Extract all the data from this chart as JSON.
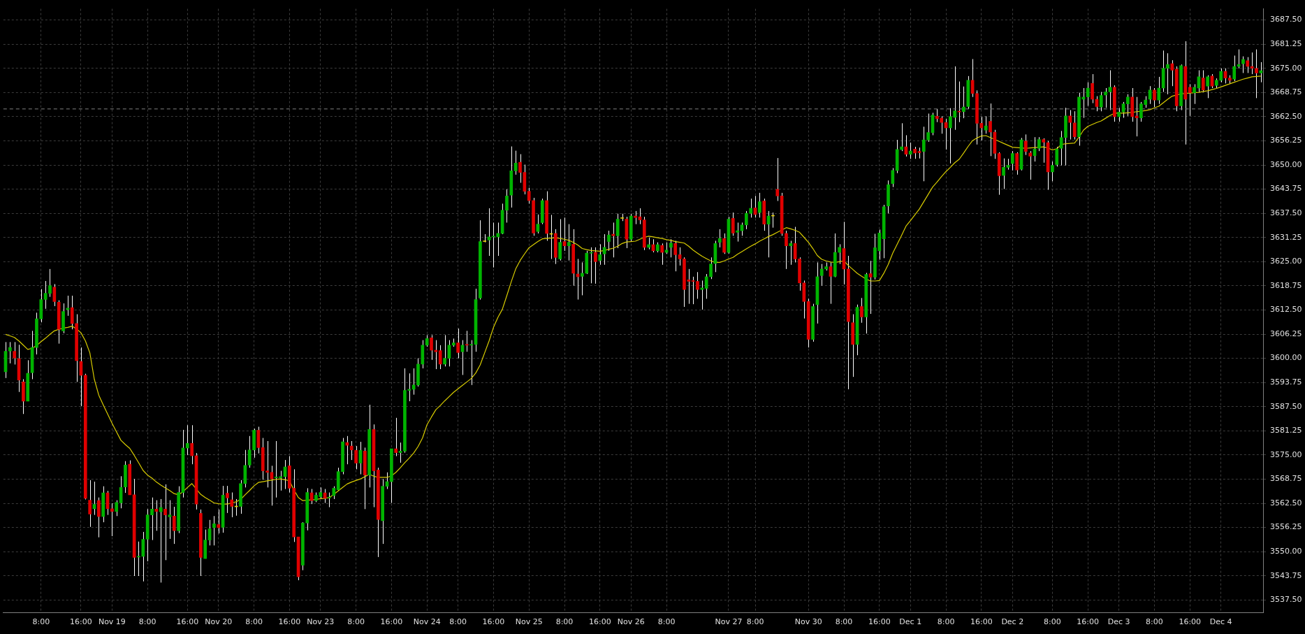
{
  "chart_data": {
    "type": "candlestick",
    "legend": false,
    "grid": true,
    "marker": "none",
    "categories": [
      null,
      null,
      null,
      null,
      null,
      null,
      null,
      null,
      "8:00",
      null,
      null,
      null,
      null,
      null,
      null,
      null,
      null,
      "16:00",
      null,
      null,
      null,
      null,
      null,
      null,
      "Nov 19",
      null,
      null,
      null,
      null,
      null,
      null,
      null,
      "8:00",
      null,
      null,
      null,
      null,
      null,
      null,
      null,
      null,
      "16:00",
      null,
      null,
      null,
      null,
      null,
      null,
      "Nov 20",
      null,
      null,
      null,
      null,
      null,
      null,
      null,
      "8:00",
      null,
      null,
      null,
      null,
      null,
      null,
      null,
      "16:00",
      null,
      null,
      null,
      null,
      null,
      null,
      "Nov 23",
      null,
      null,
      null,
      null,
      null,
      null,
      null,
      "8:00",
      null,
      null,
      null,
      null,
      null,
      null,
      null,
      "16:00",
      null,
      null,
      null,
      null,
      null,
      null,
      null,
      "Nov 24",
      null,
      null,
      null,
      null,
      null,
      null,
      "8:00",
      null,
      null,
      null,
      null,
      null,
      null,
      null,
      "16:00",
      null,
      null,
      null,
      null,
      null,
      null,
      null,
      "Nov 25",
      null,
      null,
      null,
      null,
      null,
      null,
      null,
      "8:00",
      null,
      null,
      null,
      null,
      null,
      null,
      null,
      "16:00",
      null,
      null,
      null,
      null,
      null,
      null,
      "Nov 26",
      null,
      null,
      null,
      null,
      null,
      null,
      null,
      "8:00",
      null,
      null,
      null,
      null,
      null,
      null,
      null,
      null,
      null,
      null,
      null,
      null,
      null,
      "Nov 27",
      null,
      null,
      null,
      null,
      null,
      "8:00",
      null,
      null,
      null,
      null,
      null,
      null,
      null,
      null,
      null,
      null,
      null,
      "Nov 30",
      null,
      null,
      null,
      null,
      null,
      null,
      null,
      "8:00",
      null,
      null,
      null,
      null,
      null,
      null,
      null,
      "16:00",
      null,
      null,
      null,
      null,
      null,
      null,
      "Dec 1",
      null,
      null,
      null,
      null,
      null,
      null,
      null,
      "8:00",
      null,
      null,
      null,
      null,
      null,
      null,
      null,
      "16:00",
      null,
      null,
      null,
      null,
      null,
      null,
      "Dec 2",
      null,
      null,
      null,
      null,
      null,
      null,
      null,
      null,
      "8:00",
      null,
      null,
      null,
      null,
      null,
      null,
      null,
      "16:00",
      null,
      null,
      null,
      null,
      null,
      null,
      "Dec 3",
      null,
      null,
      null,
      null,
      null,
      null,
      null,
      "8:00",
      null,
      null,
      null,
      null,
      null,
      null,
      null,
      "16:00",
      null,
      null,
      null,
      null,
      null,
      null,
      "Dec 4",
      null,
      null,
      null,
      null,
      null,
      null,
      null,
      null,
      null
    ],
    "ohlc": [
      [
        3596.5,
        3604.2,
        3594.9,
        3601.8
      ],
      [
        3601.9,
        3604.2,
        3598.7,
        3602.8
      ],
      [
        3601.8,
        3604.2,
        3598.4,
        3600.1
      ],
      [
        3599.9,
        3603.5,
        3591.3,
        3594.4
      ],
      [
        3593.9,
        3594.6,
        3585.6,
        3588.9
      ],
      [
        3588.9,
        3599.5,
        3588.9,
        3596.1
      ],
      [
        3596.3,
        3607.1,
        3594.6,
        3602.8
      ],
      [
        3602.8,
        3611.8,
        3601.0,
        3610.2
      ],
      [
        3610.2,
        3617.9,
        3609.3,
        3615.2
      ],
      [
        3615.2,
        3620.0,
        3612.8,
        3616.8
      ],
      [
        3616.8,
        3623.1,
        3615.9,
        3618.8
      ],
      [
        3618.4,
        3619.2,
        3613.5,
        3614.7
      ],
      [
        3614.5,
        3615.0,
        3603.8,
        3607.5
      ],
      [
        3607.1,
        3614.2,
        3606.5,
        3612.1
      ],
      [
        3612.6,
        3616.2,
        3611.0,
        3613.0
      ],
      [
        3613.1,
        3616.2,
        3607.5,
        3609.0
      ],
      [
        3609.0,
        3611.4,
        3593.9,
        3599.4
      ],
      [
        3599.2,
        3602.8,
        3587.6,
        3595.6
      ],
      [
        3595.6,
        3596.0,
        3563.5,
        3563.8
      ],
      [
        3563.3,
        3568.5,
        3556.4,
        3559.7
      ],
      [
        3561.1,
        3568.1,
        3559.5,
        3562.2
      ],
      [
        3563.2,
        3564.0,
        3553.7,
        3559.1
      ],
      [
        3559.1,
        3566.9,
        3557.6,
        3565.2
      ],
      [
        3565.2,
        3565.7,
        3559.5,
        3561.1
      ],
      [
        3561.1,
        3562.5,
        3554.0,
        3560.4
      ],
      [
        3560.4,
        3563.3,
        3559.2,
        3562.7
      ],
      [
        3562.6,
        3569.5,
        3561.2,
        3566.6
      ],
      [
        3566.7,
        3573.4,
        3565.2,
        3572.4
      ],
      [
        3572.6,
        3573.6,
        3564.7,
        3564.7
      ],
      [
        3564.7,
        3568.8,
        3543.7,
        3548.5
      ],
      [
        3548.6,
        3552.6,
        3543.7,
        3548.8
      ],
      [
        3548.8,
        3555.1,
        3542.3,
        3553.2
      ],
      [
        3553.2,
        3561.0,
        3547.5,
        3559.5
      ],
      [
        3559.5,
        3564.0,
        3553.0,
        3561.0
      ],
      [
        3561.0,
        3563.3,
        3555.4,
        3560.4
      ],
      [
        3560.3,
        3563.6,
        3542.0,
        3561.4
      ],
      [
        3561.0,
        3567.4,
        3547.8,
        3559.5
      ],
      [
        3559.0,
        3563.3,
        3553.3,
        3559.5
      ],
      [
        3559.2,
        3561.6,
        3552.0,
        3555.4
      ],
      [
        3555.4,
        3566.9,
        3554.8,
        3565.3
      ],
      [
        3565.3,
        3581.5,
        3564.0,
        3576.8
      ],
      [
        3576.8,
        3582.7,
        3575.0,
        3578.0
      ],
      [
        3578.0,
        3582.7,
        3572.6,
        3574.8
      ],
      [
        3574.8,
        3575.5,
        3560.9,
        3562.3
      ],
      [
        3559.9,
        3560.9,
        3543.7,
        3548.5
      ],
      [
        3548.2,
        3555.7,
        3548.2,
        3553.0
      ],
      [
        3553.0,
        3558.2,
        3551.6,
        3555.9
      ],
      [
        3556.2,
        3559.2,
        3551.6,
        3557.2
      ],
      [
        3557.0,
        3560.9,
        3554.7,
        3556.2
      ],
      [
        3556.3,
        3567.0,
        3554.9,
        3564.6
      ],
      [
        3565.1,
        3567.0,
        3560.0,
        3563.9
      ],
      [
        3563.4,
        3565.3,
        3558.9,
        3561.7
      ],
      [
        3561.6,
        3563.6,
        3559.3,
        3561.6
      ],
      [
        3561.7,
        3568.5,
        3559.8,
        3567.6
      ],
      [
        3567.6,
        3576.3,
        3566.6,
        3572.3
      ],
      [
        3572.4,
        3579.9,
        3571.7,
        3576.3
      ],
      [
        3576.3,
        3581.8,
        3574.3,
        3581.4
      ],
      [
        3581.4,
        3582.3,
        3575.4,
        3576.9
      ],
      [
        3576.9,
        3579.4,
        3568.6,
        3570.9
      ],
      [
        3570.9,
        3578.6,
        3566.6,
        3570.5
      ],
      [
        3570.5,
        3572.2,
        3561.9,
        3568.8
      ],
      [
        3569.1,
        3578.6,
        3564.0,
        3569.3
      ],
      [
        3569.1,
        3570.9,
        3565.8,
        3569.4
      ],
      [
        3569.4,
        3573.7,
        3566.2,
        3571.9
      ],
      [
        3572.2,
        3574.7,
        3565.3,
        3566.4
      ],
      [
        3566.4,
        3571.3,
        3552.5,
        3553.8
      ],
      [
        3553.8,
        3553.8,
        3542.6,
        3543.5
      ],
      [
        3546.5,
        3557.6,
        3545.2,
        3557.4
      ],
      [
        3557.4,
        3566.4,
        3555.5,
        3565.3
      ],
      [
        3565.2,
        3566.2,
        3562.3,
        3563.2
      ],
      [
        3563.2,
        3565.3,
        3562.8,
        3564.6
      ],
      [
        3564.2,
        3566.6,
        3563.6,
        3565.3
      ],
      [
        3565.2,
        3566.2,
        3562.6,
        3563.8
      ],
      [
        3563.9,
        3565.3,
        3561.5,
        3564.1
      ],
      [
        3564.5,
        3566.9,
        3563.6,
        3566.4
      ],
      [
        3566.0,
        3571.7,
        3565.8,
        3570.7
      ],
      [
        3570.7,
        3579.4,
        3570.0,
        3578.4
      ],
      [
        3578.2,
        3579.9,
        3572.6,
        3577.5
      ],
      [
        3577.3,
        3578.6,
        3573.7,
        3576.3
      ],
      [
        3576.2,
        3577.3,
        3571.3,
        3572.9
      ],
      [
        3572.9,
        3578.4,
        3570.0,
        3576.2
      ],
      [
        3576.0,
        3576.9,
        3561.0,
        3569.8
      ],
      [
        3569.8,
        3588.0,
        3566.6,
        3581.6
      ],
      [
        3581.6,
        3582.9,
        3561.5,
        3570.9
      ],
      [
        3571.1,
        3571.7,
        3548.6,
        3558.3
      ],
      [
        3558.0,
        3568.8,
        3552.0,
        3566.9
      ],
      [
        3566.9,
        3570.5,
        3566.2,
        3568.1
      ],
      [
        3568.1,
        3576.6,
        3562.6,
        3576.6
      ],
      [
        3576.6,
        3584.6,
        3574.7,
        3575.6
      ],
      [
        3575.6,
        3578.2,
        3573.0,
        3576.0
      ],
      [
        3576.0,
        3597.4,
        3575.6,
        3591.7
      ],
      [
        3591.7,
        3596.1,
        3588.9,
        3592.0
      ],
      [
        3592.0,
        3597.4,
        3590.6,
        3593.1
      ],
      [
        3593.1,
        3600.0,
        3592.7,
        3598.5
      ],
      [
        3598.5,
        3604.7,
        3597.4,
        3603.4
      ],
      [
        3603.4,
        3606.0,
        3603.0,
        3605.1
      ],
      [
        3605.3,
        3606.0,
        3599.6,
        3602.1
      ],
      [
        3602.1,
        3604.7,
        3597.2,
        3601.7
      ],
      [
        3602.0,
        3603.4,
        3597.2,
        3598.5
      ],
      [
        3598.5,
        3606.0,
        3597.9,
        3600.0
      ],
      [
        3600.0,
        3604.7,
        3597.9,
        3603.4
      ],
      [
        3603.4,
        3605.1,
        3603.0,
        3604.0
      ],
      [
        3604.0,
        3607.7,
        3600.0,
        3601.5
      ],
      [
        3601.7,
        3604.7,
        3595.7,
        3603.4
      ],
      [
        3603.6,
        3607.1,
        3601.7,
        3603.4
      ],
      [
        3603.4,
        3604.7,
        3593.1,
        3603.6
      ],
      [
        3603.6,
        3618.0,
        3601.7,
        3615.2
      ],
      [
        3615.6,
        3635.7,
        3615.2,
        3630.2
      ],
      [
        3630.2,
        3632.1,
        3630.0,
        3630.2
      ],
      [
        3630.6,
        3638.8,
        3626.5,
        3631.4
      ],
      [
        3631.4,
        3635.1,
        3623.5,
        3631.5
      ],
      [
        3631.4,
        3635.1,
        3626.5,
        3632.3
      ],
      [
        3632.3,
        3640.0,
        3632.1,
        3638.3
      ],
      [
        3638.3,
        3643.7,
        3635.1,
        3642.0
      ],
      [
        3642.2,
        3654.8,
        3639.0,
        3648.5
      ],
      [
        3648.5,
        3653.7,
        3647.5,
        3650.5
      ],
      [
        3650.7,
        3652.8,
        3645.4,
        3648.1
      ],
      [
        3648.1,
        3650.1,
        3642.4,
        3643.2
      ],
      [
        3643.2,
        3644.1,
        3640.0,
        3640.8
      ],
      [
        3640.8,
        3641.5,
        3631.7,
        3632.4
      ],
      [
        3632.8,
        3637.2,
        3632.3,
        3634.7
      ],
      [
        3635.1,
        3641.3,
        3634.7,
        3640.8
      ],
      [
        3640.8,
        3643.2,
        3630.4,
        3632.3
      ],
      [
        3632.1,
        3637.1,
        3625.7,
        3632.1
      ],
      [
        3632.3,
        3633.4,
        3624.4,
        3626.1
      ],
      [
        3625.7,
        3636.0,
        3625.3,
        3630.0
      ],
      [
        3630.2,
        3636.4,
        3627.8,
        3629.1
      ],
      [
        3629.1,
        3634.7,
        3625.3,
        3630.0
      ],
      [
        3629.5,
        3633.4,
        3618.8,
        3622.0
      ],
      [
        3621.8,
        3625.7,
        3615.2,
        3621.1
      ],
      [
        3621.2,
        3624.8,
        3616.3,
        3622.0
      ],
      [
        3622.0,
        3627.8,
        3621.8,
        3627.2
      ],
      [
        3627.2,
        3628.7,
        3619.4,
        3627.4
      ],
      [
        3627.4,
        3628.7,
        3619.3,
        3625.0
      ],
      [
        3625.3,
        3629.5,
        3624.2,
        3626.8
      ],
      [
        3627.0,
        3632.1,
        3624.2,
        3628.7
      ],
      [
        3630.2,
        3633.0,
        3627.8,
        3631.9
      ],
      [
        3632.1,
        3635.1,
        3626.1,
        3631.7
      ],
      [
        3631.7,
        3637.4,
        3628.5,
        3636.0
      ],
      [
        3636.2,
        3637.4,
        3635.5,
        3636.2
      ],
      [
        3636.0,
        3636.6,
        3628.5,
        3630.8
      ],
      [
        3630.8,
        3637.4,
        3630.2,
        3636.8
      ],
      [
        3636.8,
        3638.1,
        3634.7,
        3636.4
      ],
      [
        3636.6,
        3638.8,
        3634.7,
        3635.8
      ],
      [
        3635.8,
        3636.6,
        3628.0,
        3628.7
      ],
      [
        3628.7,
        3631.2,
        3628.2,
        3629.4
      ],
      [
        3629.4,
        3630.8,
        3627.4,
        3627.8
      ],
      [
        3627.8,
        3630.0,
        3627.4,
        3629.4
      ],
      [
        3629.2,
        3629.7,
        3624.2,
        3627.4
      ],
      [
        3627.4,
        3630.0,
        3627.0,
        3628.0
      ],
      [
        3628.7,
        3630.8,
        3626.1,
        3629.8
      ],
      [
        3629.7,
        3630.4,
        3622.5,
        3626.8
      ],
      [
        3626.8,
        3628.7,
        3624.0,
        3625.7
      ],
      [
        3625.7,
        3626.1,
        3613.3,
        3617.8
      ],
      [
        3620.3,
        3623.1,
        3614.1,
        3619.9
      ],
      [
        3620.1,
        3621.1,
        3614.0,
        3619.9
      ],
      [
        3619.9,
        3622.3,
        3615.4,
        3617.8
      ],
      [
        3617.8,
        3620.1,
        3612.6,
        3618.2
      ],
      [
        3618.1,
        3621.8,
        3615.4,
        3621.1
      ],
      [
        3621.1,
        3626.1,
        3620.5,
        3624.4
      ],
      [
        3624.5,
        3630.4,
        3622.3,
        3629.7
      ],
      [
        3630.0,
        3633.4,
        3628.7,
        3631.0
      ],
      [
        3631.0,
        3632.3,
        3627.0,
        3627.4
      ],
      [
        3627.4,
        3636.6,
        3627.1,
        3636.0
      ],
      [
        3636.2,
        3637.7,
        3631.7,
        3632.4
      ],
      [
        3632.6,
        3635.1,
        3630.2,
        3633.0
      ],
      [
        3633.0,
        3635.1,
        3631.7,
        3634.5
      ],
      [
        3634.5,
        3638.1,
        3633.4,
        3637.5
      ],
      [
        3637.5,
        3641.3,
        3636.4,
        3638.8
      ],
      [
        3638.9,
        3642.0,
        3636.4,
        3637.2
      ],
      [
        3637.7,
        3642.8,
        3636.4,
        3640.5
      ],
      [
        3640.7,
        3641.3,
        3633.0,
        3634.7
      ],
      [
        3634.7,
        3638.1,
        3626.1,
        3636.8
      ],
      [
        3636.8,
        3637.7,
        3633.8,
        3636.8
      ],
      [
        3643.7,
        3651.8,
        3640.7,
        3642.0
      ],
      [
        3642.0,
        3642.8,
        3631.7,
        3632.3
      ],
      [
        3632.3,
        3633.0,
        3623.1,
        3629.1
      ],
      [
        3629.1,
        3630.4,
        3624.2,
        3629.7
      ],
      [
        3629.7,
        3634.0,
        3624.8,
        3625.7
      ],
      [
        3625.7,
        3626.1,
        3617.5,
        3619.5
      ],
      [
        3619.5,
        3620.1,
        3610.3,
        3614.7
      ],
      [
        3614.7,
        3615.4,
        3602.8,
        3604.9
      ],
      [
        3604.9,
        3614.1,
        3604.3,
        3613.4
      ],
      [
        3613.9,
        3624.8,
        3609.0,
        3621.1
      ],
      [
        3621.4,
        3624.4,
        3618.8,
        3623.1
      ],
      [
        3623.1,
        3624.8,
        3622.7,
        3623.7
      ],
      [
        3623.7,
        3624.8,
        3614.1,
        3621.2
      ],
      [
        3621.2,
        3632.3,
        3621.0,
        3627.4
      ],
      [
        3627.4,
        3629.5,
        3624.4,
        3628.7
      ],
      [
        3628.4,
        3635.3,
        3619.1,
        3623.1
      ],
      [
        3623.1,
        3626.5,
        3592.0,
        3609.5
      ],
      [
        3609.2,
        3611.4,
        3595.2,
        3603.6
      ],
      [
        3603.6,
        3613.9,
        3600.8,
        3613.2
      ],
      [
        3613.4,
        3615.6,
        3609.2,
        3610.7
      ],
      [
        3610.7,
        3622.1,
        3606.4,
        3621.7
      ],
      [
        3621.9,
        3625.2,
        3611.5,
        3621.0
      ],
      [
        3621.0,
        3632.2,
        3620.4,
        3628.6
      ],
      [
        3627.8,
        3633.3,
        3625.5,
        3632.4
      ],
      [
        3630.9,
        3639.7,
        3625.9,
        3639.2
      ],
      [
        3639.4,
        3646.0,
        3637.5,
        3644.9
      ],
      [
        3645.2,
        3649.2,
        3644.3,
        3648.6
      ],
      [
        3648.6,
        3656.5,
        3647.9,
        3654.0
      ],
      [
        3654.0,
        3660.8,
        3653.6,
        3654.7
      ],
      [
        3654.7,
        3657.7,
        3652.2,
        3652.8
      ],
      [
        3652.8,
        3655.8,
        3651.6,
        3653.6
      ],
      [
        3654.1,
        3654.7,
        3651.6,
        3653.1
      ],
      [
        3653.5,
        3654.5,
        3651.7,
        3653.2
      ],
      [
        3653.5,
        3659.9,
        3645.8,
        3656.5
      ],
      [
        3656.5,
        3663.3,
        3656.0,
        3658.4
      ],
      [
        3658.4,
        3663.5,
        3657.7,
        3662.9
      ],
      [
        3662.6,
        3664.5,
        3661.1,
        3662.0
      ],
      [
        3662.1,
        3662.6,
        3658.1,
        3661.0
      ],
      [
        3661.0,
        3661.9,
        3654.0,
        3659.6
      ],
      [
        3659.6,
        3664.7,
        3650.4,
        3662.5
      ],
      [
        3662.3,
        3675.5,
        3659.1,
        3664.0
      ],
      [
        3663.9,
        3671.6,
        3661.1,
        3663.7
      ],
      [
        3663.8,
        3670.3,
        3662.1,
        3665.0
      ],
      [
        3665.1,
        3673.0,
        3664.5,
        3671.9
      ],
      [
        3671.9,
        3677.4,
        3667.6,
        3668.5
      ],
      [
        3668.5,
        3669.3,
        3655.3,
        3660.8
      ],
      [
        3660.8,
        3662.5,
        3656.4,
        3659.6
      ],
      [
        3659.0,
        3662.6,
        3658.1,
        3660.1
      ],
      [
        3661.3,
        3665.9,
        3652.3,
        3658.5
      ],
      [
        3658.5,
        3659.1,
        3651.6,
        3653.0
      ],
      [
        3653.0,
        3653.3,
        3642.3,
        3647.2
      ],
      [
        3647.3,
        3651.7,
        3643.8,
        3649.4
      ],
      [
        3649.4,
        3651.6,
        3648.8,
        3649.9
      ],
      [
        3650.4,
        3653.6,
        3648.6,
        3653.0
      ],
      [
        3653.0,
        3653.3,
        3647.5,
        3648.7
      ],
      [
        3648.9,
        3657.0,
        3648.6,
        3656.5
      ],
      [
        3656.2,
        3657.9,
        3652.6,
        3653.5
      ],
      [
        3653.1,
        3653.6,
        3646.2,
        3652.3
      ],
      [
        3652.4,
        3657.2,
        3650.9,
        3654.1
      ],
      [
        3654.3,
        3657.2,
        3653.6,
        3656.6
      ],
      [
        3656.6,
        3656.9,
        3650.6,
        3655.9
      ],
      [
        3655.8,
        3656.2,
        3643.6,
        3648.2
      ],
      [
        3648.2,
        3650.9,
        3645.8,
        3649.9
      ],
      [
        3650.1,
        3654.7,
        3649.6,
        3654.1
      ],
      [
        3654.3,
        3658.8,
        3649.9,
        3657.1
      ],
      [
        3657.1,
        3664.8,
        3649.9,
        3662.7
      ],
      [
        3662.7,
        3664.2,
        3656.6,
        3661.0
      ],
      [
        3660.9,
        3663.9,
        3656.6,
        3657.3
      ],
      [
        3657.3,
        3668.7,
        3655.0,
        3667.6
      ],
      [
        3667.0,
        3669.9,
        3662.2,
        3667.6
      ],
      [
        3667.6,
        3671.4,
        3665.3,
        3669.9
      ],
      [
        3671.1,
        3673.5,
        3666.0,
        3667.0
      ],
      [
        3667.0,
        3667.8,
        3663.9,
        3665.1
      ],
      [
        3665.0,
        3668.9,
        3663.9,
        3668.0
      ],
      [
        3668.1,
        3669.9,
        3664.8,
        3668.9
      ],
      [
        3668.9,
        3674.5,
        3664.2,
        3670.1
      ],
      [
        3670.1,
        3670.6,
        3661.2,
        3662.5
      ],
      [
        3662.5,
        3664.8,
        3661.2,
        3663.7
      ],
      [
        3663.7,
        3666.3,
        3662.2,
        3665.8
      ],
      [
        3665.8,
        3668.3,
        3662.7,
        3667.6
      ],
      [
        3667.6,
        3669.9,
        3661.2,
        3662.5
      ],
      [
        3662.7,
        3667.6,
        3657.4,
        3662.2
      ],
      [
        3662.2,
        3666.3,
        3661.2,
        3665.8
      ],
      [
        3665.6,
        3667.8,
        3664.8,
        3666.8
      ],
      [
        3667.0,
        3670.4,
        3665.8,
        3669.4
      ],
      [
        3669.4,
        3669.9,
        3665.0,
        3666.8
      ],
      [
        3666.8,
        3672.8,
        3665.8,
        3669.9
      ],
      [
        3669.9,
        3679.6,
        3668.9,
        3675.0
      ],
      [
        3675.0,
        3678.9,
        3668.3,
        3676.0
      ],
      [
        3676.2,
        3677.1,
        3670.4,
        3674.5
      ],
      [
        3674.8,
        3675.5,
        3663.9,
        3665.3
      ],
      [
        3665.3,
        3676.0,
        3664.2,
        3675.7
      ],
      [
        3675.5,
        3682.0,
        3655.3,
        3667.0
      ],
      [
        3670.1,
        3670.9,
        3662.7,
        3668.7
      ],
      [
        3668.7,
        3670.9,
        3665.8,
        3670.1
      ],
      [
        3669.9,
        3674.5,
        3668.9,
        3672.8
      ],
      [
        3672.5,
        3674.5,
        3668.9,
        3669.4
      ],
      [
        3670.4,
        3673.2,
        3667.3,
        3672.8
      ],
      [
        3673.0,
        3673.5,
        3669.9,
        3670.4
      ],
      [
        3670.6,
        3672.4,
        3669.9,
        3671.9
      ],
      [
        3671.9,
        3675.0,
        3671.4,
        3674.2
      ],
      [
        3674.2,
        3675.0,
        3671.1,
        3672.5
      ],
      [
        3672.5,
        3673.2,
        3671.1,
        3671.9
      ],
      [
        3672.2,
        3678.3,
        3671.7,
        3675.5
      ],
      [
        3675.5,
        3679.9,
        3675.0,
        3676.0
      ],
      [
        3676.2,
        3678.1,
        3673.8,
        3677.3
      ],
      [
        3677.0,
        3677.9,
        3673.8,
        3675.5
      ],
      [
        3675.5,
        3679.1,
        3673.5,
        3675.0
      ],
      [
        3675.0,
        3679.9,
        3667.3,
        3673.8
      ],
      [
        3673.8,
        3676.6,
        3671.4,
        3674.4
      ]
    ],
    "colors": [
      "#00b400",
      "#00b400",
      "#e00000",
      "#e00000",
      "#e00000",
      "#00b400",
      "#00b400",
      "#00b400",
      "#00b400",
      "#00b400",
      "#00b400",
      "#e00000",
      "#e00000",
      "#00b400",
      "#00b400",
      "#e00000",
      "#e00000",
      "#e00000",
      "#e00000",
      "#e00000",
      "#00b400",
      "#e00000",
      "#00b400",
      "#e00000",
      "#e00000",
      "#00b400",
      "#00b400",
      "#00b400",
      "#e00000",
      "#e00000",
      "#00b400",
      "#00b400",
      "#00b400",
      "#00b400",
      "#e00000",
      "#00b400",
      "#e00000",
      "#00b400",
      "#e00000",
      "#00b400",
      "#00b400",
      "#00b400",
      "#e00000",
      "#e00000",
      "#e00000",
      "#00b400",
      "#00b400",
      "#00b400",
      "#e00000",
      "#00b400",
      "#e00000",
      "#e00000",
      "#e6d200",
      "#00b400",
      "#00b400",
      "#00b400",
      "#00b400",
      "#e00000",
      "#e00000",
      "#e00000",
      "#e00000",
      "#00b400",
      "#00b400",
      "#00b400",
      "#e00000",
      "#e00000",
      "#e00000",
      "#00b400",
      "#00b400",
      "#e00000",
      "#00b400",
      "#00b400",
      "#e00000",
      "#00b400",
      "#00b400",
      "#00b400",
      "#00b400",
      "#e00000",
      "#e00000",
      "#e00000",
      "#00b400",
      "#e00000",
      "#00b400",
      "#e00000",
      "#e00000",
      "#00b400",
      "#00b400",
      "#00b400",
      "#e00000",
      "#00b400",
      "#00b400",
      "#00b400",
      "#00b400",
      "#00b400",
      "#00b400",
      "#00b400",
      "#e00000",
      "#e00000",
      "#e00000",
      "#00b400",
      "#00b400",
      "#00b400",
      "#e00000",
      "#00b400",
      "#e00000",
      "#00b400",
      "#00b400",
      "#00b400",
      "#e6d200",
      "#00b400",
      "#00b400",
      "#00b400",
      "#00b400",
      "#00b400",
      "#00b400",
      "#00b400",
      "#e00000",
      "#e00000",
      "#e00000",
      "#e00000",
      "#00b400",
      "#00b400",
      "#e00000",
      "#e6d200",
      "#e00000",
      "#00b400",
      "#e00000",
      "#00b400",
      "#e00000",
      "#e00000",
      "#00b400",
      "#00b400",
      "#00b400",
      "#e00000",
      "#00b400",
      "#00b400",
      "#00b400",
      "#e00000",
      "#00b400",
      "#e6d200",
      "#e00000",
      "#00b400",
      "#e00000",
      "#e00000",
      "#e00000",
      "#00b400",
      "#e00000",
      "#00b400",
      "#e00000",
      "#00b400",
      "#00b400",
      "#e00000",
      "#e00000",
      "#e00000",
      "#e00000",
      "#e00000",
      "#e00000",
      "#00b400",
      "#00b400",
      "#00b400",
      "#00b400",
      "#00b400",
      "#e00000",
      "#00b400",
      "#e00000",
      "#00b400",
      "#00b400",
      "#00b400",
      "#00b400",
      "#e00000",
      "#00b400",
      "#e00000",
      "#00b400",
      "#e6d200",
      "#e00000",
      "#e00000",
      "#e00000",
      "#00b400",
      "#e00000",
      "#e00000",
      "#e00000",
      "#e00000",
      "#00b400",
      "#00b400",
      "#00b400",
      "#00b400",
      "#e00000",
      "#00b400",
      "#00b400",
      "#e00000",
      "#e00000",
      "#e00000",
      "#00b400",
      "#e00000",
      "#00b400",
      "#e00000",
      "#00b400",
      "#00b400",
      "#00b400",
      "#00b400",
      "#00b400",
      "#00b400",
      "#00b400",
      "#e00000",
      "#00b400",
      "#e00000",
      "#e00000",
      "#00b400",
      "#00b400",
      "#00b400",
      "#e00000",
      "#e00000",
      "#e00000",
      "#00b400",
      "#00b400",
      "#e00000",
      "#00b400",
      "#00b400",
      "#e00000",
      "#e00000",
      "#e00000",
      "#00b400",
      "#e00000",
      "#e00000",
      "#e00000",
      "#00b400",
      "#00b400",
      "#00b400",
      "#e00000",
      "#00b400",
      "#e00000",
      "#e00000",
      "#00b400",
      "#00b400",
      "#e00000",
      "#e00000",
      "#00b400",
      "#00b400",
      "#00b400",
      "#00b400",
      "#e00000",
      "#e00000",
      "#00b400",
      "#00b400",
      "#00b400",
      "#e00000",
      "#e00000",
      "#00b400",
      "#00b400",
      "#00b400",
      "#e00000",
      "#00b400",
      "#00b400",
      "#00b400",
      "#e00000",
      "#e00000",
      "#00b400",
      "#00b400",
      "#00b400",
      "#e00000",
      "#00b400",
      "#00b400",
      "#00b400",
      "#e00000",
      "#e00000",
      "#00b400",
      "#e00000",
      "#e00000",
      "#00b400",
      "#00b400",
      "#e00000",
      "#00b400",
      "#e00000",
      "#00b400",
      "#00b400",
      "#e00000",
      "#e00000",
      "#00b400",
      "#00b400",
      "#00b400",
      "#e00000",
      "#e00000",
      "#e00000",
      "#00b400"
    ],
    "series": [
      {
        "type": "line",
        "color": "#d8cc00",
        "values": [
          3606.2,
          3605.8,
          3605.4,
          3604.5,
          3603.4,
          3602.3,
          3602.6,
          3603.3,
          3604.3,
          3605.2,
          3606.2,
          3607.1,
          3607.5,
          3607.8,
          3608.0,
          3608.3,
          3607.6,
          3606.6,
          3604.5,
          3601.4,
          3594.6,
          3590.5,
          3588.0,
          3585.6,
          3583.2,
          3581.0,
          3578.8,
          3577.7,
          3576.7,
          3574.9,
          3573.0,
          3571.0,
          3569.8,
          3569.0,
          3568.0,
          3567.2,
          3566.5,
          3565.8,
          3565.0,
          3564.7,
          3565.5,
          3566.6,
          3567.6,
          3566.2,
          3564.8,
          3564.0,
          3563.3,
          3562.6,
          3562.4,
          3562.3,
          3562.3,
          3562.6,
          3562.9,
          3563.5,
          3564.7,
          3565.8,
          3567.0,
          3567.9,
          3568.1,
          3568.3,
          3568.5,
          3568.7,
          3568.8,
          3568.6,
          3568.3,
          3566.0,
          3564.0,
          3563.2,
          3563.3,
          3563.4,
          3563.5,
          3563.7,
          3563.8,
          3564.0,
          3564.8,
          3565.7,
          3566.6,
          3567.5,
          3568.0,
          3568.4,
          3568.8,
          3569.4,
          3570.0,
          3569.5,
          3569.2,
          3569.2,
          3569.2,
          3569.6,
          3570.5,
          3571.7,
          3573.0,
          3574.2,
          3575.5,
          3577.2,
          3579.4,
          3582.8,
          3584.8,
          3586.7,
          3587.8,
          3589.0,
          3590.1,
          3591.2,
          3592.1,
          3593.0,
          3593.9,
          3594.8,
          3596.2,
          3598.3,
          3601.4,
          3604.5,
          3608.0,
          3610.6,
          3612.7,
          3616.2,
          3619.8,
          3623.1,
          3625.3,
          3627.0,
          3628.6,
          3629.4,
          3630.2,
          3630.9,
          3631.0,
          3631.1,
          3631.2,
          3631.0,
          3630.8,
          3630.5,
          3630.0,
          3629.3,
          3628.4,
          3628.1,
          3627.9,
          3627.8,
          3627.7,
          3627.9,
          3628.2,
          3628.5,
          3629.0,
          3629.7,
          3630.1,
          3630.2,
          3630.3,
          3630.8,
          3631.3,
          3631.6,
          3631.4,
          3631.2,
          3631.0,
          3630.7,
          3630.5,
          3630.2,
          3630.0,
          3629.8,
          3629.0,
          3628.0,
          3627.2,
          3626.4,
          3625.8,
          3625.2,
          3624.8,
          3624.8,
          3625.2,
          3625.7,
          3626.1,
          3626.9,
          3627.6,
          3628.3,
          3629.0,
          3629.6,
          3630.3,
          3630.9,
          3631.5,
          3632.0,
          3632.6,
          3633.2,
          3633.8,
          3633.5,
          3633.1,
          3632.6,
          3631.3,
          3630.0,
          3628.4,
          3626.6,
          3625.6,
          3625.2,
          3624.9,
          3624.8,
          3625.0,
          3625.2,
          3624.0,
          3623.0,
          3622.0,
          3621.2,
          3620.5,
          3620.0,
          3620.0,
          3620.1,
          3622.0,
          3624.3,
          3627.2,
          3629.5,
          3631.8,
          3634.2,
          3635.6,
          3637.1,
          3638.6,
          3640.5,
          3642.4,
          3644.3,
          3645.6,
          3647.0,
          3648.3,
          3649.4,
          3650.6,
          3651.5,
          3653.1,
          3654.8,
          3656.3,
          3657.0,
          3657.5,
          3657.6,
          3657.1,
          3656.6,
          3656.1,
          3655.6,
          3655.1,
          3654.6,
          3654.5,
          3654.4,
          3654.3,
          3654.4,
          3654.5,
          3654.6,
          3654.7,
          3654.4,
          3653.9,
          3654.2,
          3655.3,
          3655.5,
          3655.6,
          3655.7,
          3657.2,
          3659.0,
          3660.0,
          3660.5,
          3661.0,
          3661.4,
          3662.1,
          3662.8,
          3663.4,
          3663.4,
          3663.4,
          3663.5,
          3663.6,
          3663.8,
          3663.9,
          3664.1,
          3664.3,
          3664.8,
          3665.2,
          3666.1,
          3667.0,
          3667.8,
          3668.1,
          3668.4,
          3668.5,
          3668.6,
          3668.7,
          3668.8,
          3669.0,
          3669.2,
          3669.5,
          3669.8,
          3670.2,
          3670.6,
          3671.0,
          3671.4,
          3671.8,
          3672.2,
          3672.5,
          3672.8,
          3672.9,
          3673.0
        ]
      }
    ],
    "ylim": [
      3534.3,
      3690.4
    ],
    "yticks": [
      {
        "value": 3537.5,
        "label": "3537.50"
      },
      {
        "value": 3543.75,
        "label": "3543.75"
      },
      {
        "value": 3550,
        "label": "3550.00"
      },
      {
        "value": 3556.25,
        "label": "3556.25"
      },
      {
        "value": 3562.5,
        "label": "3562.50"
      },
      {
        "value": 3568.75,
        "label": "3568.75"
      },
      {
        "value": 3575,
        "label": "3575.00"
      },
      {
        "value": 3581.25,
        "label": "3581.25"
      },
      {
        "value": 3587.5,
        "label": "3587.50"
      },
      {
        "value": 3593.75,
        "label": "3593.75"
      },
      {
        "value": 3600,
        "label": "3600.00"
      },
      {
        "value": 3606.25,
        "label": "3606.25"
      },
      {
        "value": 3612.5,
        "label": "3612.50"
      },
      {
        "value": 3618.75,
        "label": "3618.75"
      },
      {
        "value": 3625,
        "label": "3625.00"
      },
      {
        "value": 3631.25,
        "label": "3631.25"
      },
      {
        "value": 3637.5,
        "label": "3637.50"
      },
      {
        "value": 3643.75,
        "label": "3643.75"
      },
      {
        "value": 3650,
        "label": "3650.00"
      },
      {
        "value": 3656.25,
        "label": "3656.25"
      },
      {
        "value": 3662.5,
        "label": "3662.50"
      },
      {
        "value": 3668.75,
        "label": "3668.75"
      },
      {
        "value": 3675,
        "label": "3675.00"
      },
      {
        "value": 3681.25,
        "label": "3681.25"
      },
      {
        "value": 3687.5,
        "label": "3687.50"
      }
    ],
    "ref_lines": [
      {
        "axis": "y",
        "value": 3664.5,
        "color": "#808080",
        "line_style": "dashed"
      }
    ]
  }
}
